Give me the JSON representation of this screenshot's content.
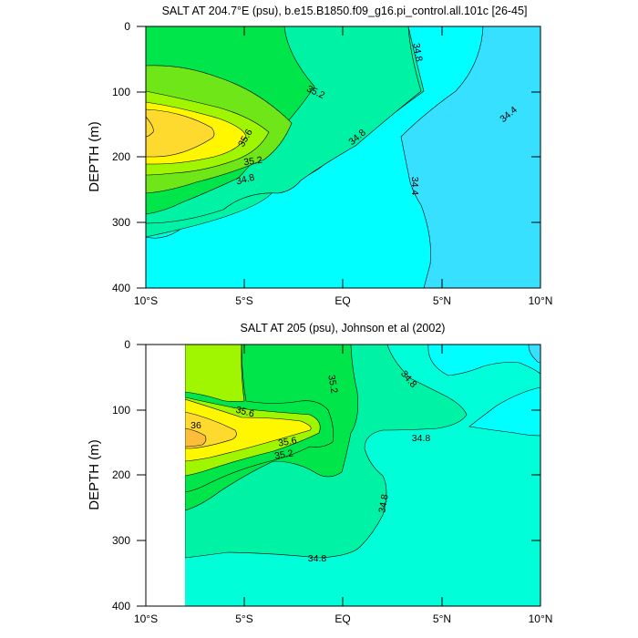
{
  "chart_data": [
    {
      "type": "contour",
      "title": "SALT AT 204.7°E (psu), b.e15.B1850.f09_g16.pi_control.all.101c [26-45]",
      "ylabel": "DEPTH (m)",
      "xlabel": "",
      "xlim": [
        -10,
        10
      ],
      "ylim": [
        400,
        0
      ],
      "x_ticks": [
        {
          "value": -10,
          "label": "10°S"
        },
        {
          "value": -5,
          "label": "5°S"
        },
        {
          "value": 0,
          "label": "EQ"
        },
        {
          "value": 5,
          "label": "5°N"
        },
        {
          "value": 10,
          "label": "10°N"
        }
      ],
      "y_ticks": [
        {
          "value": 0,
          "label": "0"
        },
        {
          "value": 100,
          "label": "100"
        },
        {
          "value": 200,
          "label": "200"
        },
        {
          "value": 300,
          "label": "300"
        },
        {
          "value": 400,
          "label": "400"
        }
      ],
      "contour_interval": 0.2,
      "fill_levels": [
        {
          "min": 34.2,
          "max": 34.4,
          "color": "#38e0ff"
        },
        {
          "min": 34.4,
          "max": 34.6,
          "color": "#00ffff"
        },
        {
          "min": 34.6,
          "max": 34.8,
          "color": "#00ffd8"
        },
        {
          "min": 34.8,
          "max": 35.0,
          "color": "#00f2a4"
        },
        {
          "min": 35.0,
          "max": 35.2,
          "color": "#00e64a"
        },
        {
          "min": 35.2,
          "max": 35.4,
          "color": "#6ee617"
        },
        {
          "min": 35.4,
          "max": 35.6,
          "color": "#a0f500"
        },
        {
          "min": 35.6,
          "max": 35.8,
          "color": "#fff700"
        },
        {
          "min": 35.8,
          "max": 36.0,
          "color": "#ffda2e"
        }
      ],
      "contour_labels": [
        {
          "text": "35.2",
          "x": -1.4,
          "y": 95
        },
        {
          "text": "34.8",
          "x": 3.5,
          "y": 40
        },
        {
          "text": "35.6",
          "x": -4.8,
          "y": 167
        },
        {
          "text": "34.8",
          "x": 0.7,
          "y": 165
        },
        {
          "text": "34.4",
          "x": 7.6,
          "y": 135
        },
        {
          "text": "35.2",
          "x": -4.7,
          "y": 205
        },
        {
          "text": "34.8",
          "x": -4.2,
          "y": 235
        },
        {
          "text": "34.4",
          "x": 3.5,
          "y": 245
        }
      ]
    },
    {
      "type": "contour",
      "title": "SALT AT 205 (psu), Johnson et al (2002)",
      "ylabel": "DEPTH (m)",
      "xlabel": "",
      "xlim": [
        -10,
        10
      ],
      "ylim": [
        400,
        0
      ],
      "data_x_range": [
        -8,
        10
      ],
      "x_ticks": [
        {
          "value": -10,
          "label": "10°S"
        },
        {
          "value": -5,
          "label": "5°S"
        },
        {
          "value": 0,
          "label": "EQ"
        },
        {
          "value": 5,
          "label": "5°N"
        },
        {
          "value": 10,
          "label": "10°N"
        }
      ],
      "y_ticks": [
        {
          "value": 0,
          "label": "0"
        },
        {
          "value": 100,
          "label": "100"
        },
        {
          "value": 200,
          "label": "200"
        },
        {
          "value": 300,
          "label": "300"
        },
        {
          "value": 400,
          "label": "400"
        }
      ],
      "contour_interval": 0.2,
      "contour_labels": [
        {
          "text": "35.2",
          "x": -0.6,
          "y": 62
        },
        {
          "text": "34.8",
          "x": 3.2,
          "y": 57
        },
        {
          "text": "35.6",
          "x": -5.0,
          "y": 108
        },
        {
          "text": "36",
          "x": -7.4,
          "y": 124
        },
        {
          "text": "35.6",
          "x": -3.1,
          "y": 152
        },
        {
          "text": "35.2",
          "x": -2.8,
          "y": 170
        },
        {
          "text": "34.8",
          "x": 3.9,
          "y": 140
        },
        {
          "text": "34.8",
          "x": 2.2,
          "y": 245
        },
        {
          "text": "34.8",
          "x": -1.3,
          "y": 328
        }
      ]
    }
  ]
}
